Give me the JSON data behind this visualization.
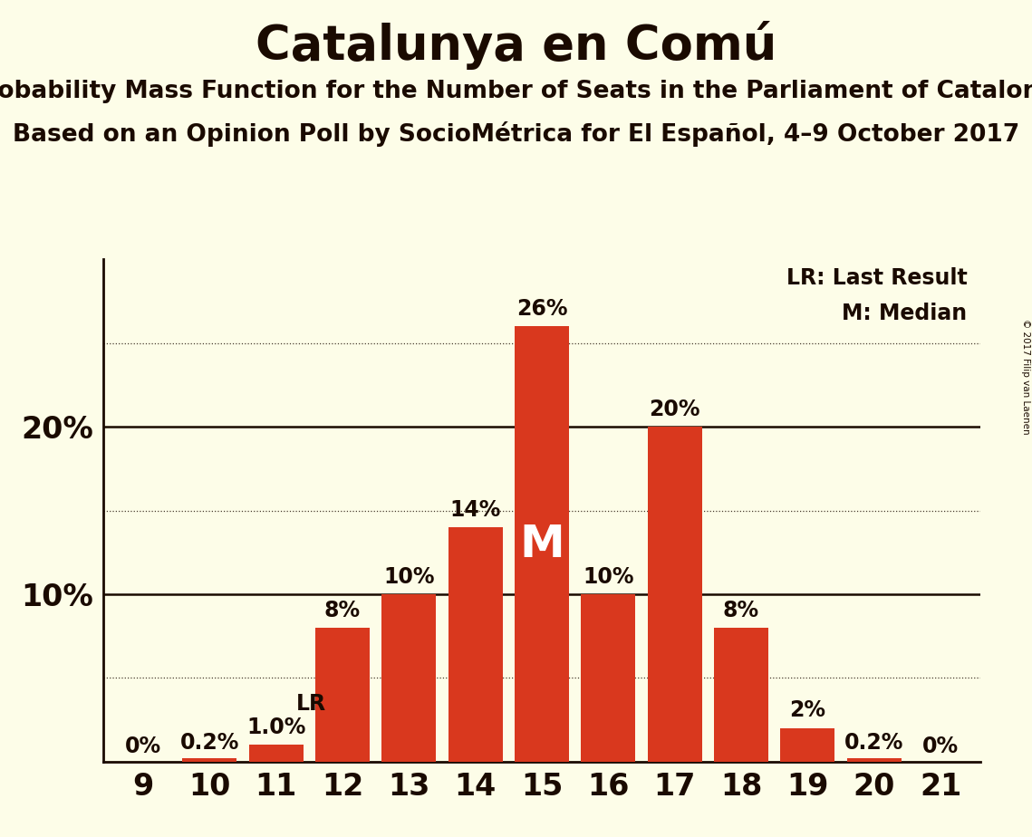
{
  "title": "Catalunya en Comú",
  "subtitle1": "Probability Mass Function for the Number of Seats in the Parliament of Catalonia",
  "subtitle2": "Based on an Opinion Poll by SocioMétrica for El Español, 4–9 October 2017",
  "copyright": "© 2017 Filip van Laenen",
  "seats": [
    9,
    10,
    11,
    12,
    13,
    14,
    15,
    16,
    17,
    18,
    19,
    20,
    21
  ],
  "probabilities": [
    0.0,
    0.2,
    1.0,
    8.0,
    10.0,
    14.0,
    26.0,
    10.0,
    20.0,
    8.0,
    2.0,
    0.2,
    0.0
  ],
  "bar_labels": [
    "0%",
    "0.2%",
    "1.0%",
    "8%",
    "10%",
    "14%",
    "26%",
    "10%",
    "20%",
    "8%",
    "2%",
    "0.2%",
    "0%"
  ],
  "bar_color": "#d9381e",
  "bg_color": "#fdfde8",
  "text_color": "#1a0a00",
  "median_seat": 15,
  "last_result_seat": 11,
  "ylim": [
    0,
    30
  ],
  "yticks": [
    0,
    5,
    10,
    15,
    20,
    25,
    30
  ],
  "ytick_labels_show": [
    false,
    false,
    true,
    false,
    true,
    false,
    false
  ],
  "ytick_labels_text": [
    "",
    "",
    "10%",
    "",
    "20%",
    "",
    ""
  ],
  "dotted_lines": [
    5,
    15,
    25
  ],
  "solid_lines": [
    10,
    20
  ],
  "legend_lr": "LR: Last Result",
  "legend_m": "M: Median",
  "bar_label_fontsize": 17,
  "title_fontsize": 38,
  "subtitle_fontsize": 19,
  "axis_label_fontsize": 24,
  "ytick_fontsize": 24,
  "median_fontsize": 36,
  "lr_fontsize": 17
}
